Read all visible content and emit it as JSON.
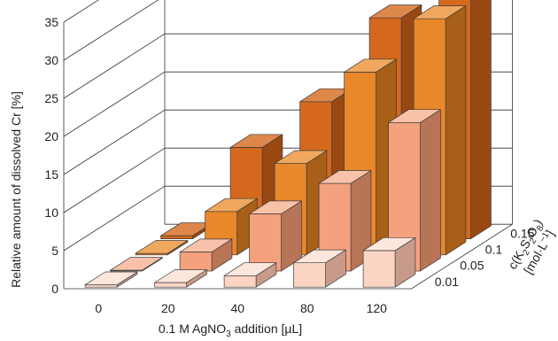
{
  "chart_data": {
    "type": "bar",
    "style": "3d-bar",
    "x_categories": [
      "0",
      "20",
      "40",
      "80",
      "120"
    ],
    "depth_categories": [
      "0.01",
      "0.05",
      "0.1",
      "0.15"
    ],
    "y_ticks": [
      "0",
      "5",
      "10",
      "15",
      "20",
      "25",
      "30",
      "35"
    ],
    "ylim": [
      0,
      35
    ],
    "grid": true,
    "ylabel": "Relative amount of dissolved Cr [%]",
    "xlabel": {
      "pre": "0.1 M AgNO",
      "sub": "3",
      "post": " addition [µL]"
    },
    "depth_label": {
      "line1": {
        "a": "c(K",
        "sub1": "2",
        "b": "S",
        "sub2": "2",
        "c": "O",
        "sub3": "8",
        "d": ")"
      },
      "line2": {
        "a": "[mol·L",
        "sup": "−1",
        "b": "]"
      }
    },
    "series": [
      {
        "name": "0.01",
        "values": [
          0.3,
          0.6,
          1.5,
          3.2,
          4.8
        ],
        "colors": {
          "front": "#fbd4c3",
          "top": "#fde6db",
          "side": "#c79a8a"
        }
      },
      {
        "name": "0.05",
        "values": [
          0.1,
          2.5,
          7.5,
          11.5,
          19.5
        ],
        "colors": {
          "front": "#f4a17e",
          "top": "#f8c2a9",
          "side": "#b87457"
        }
      },
      {
        "name": "0.1",
        "values": [
          0.2,
          5.7,
          12.0,
          24.0,
          31.0
        ],
        "colors": {
          "front": "#e8882a",
          "top": "#f0a85f",
          "side": "#a85f18"
        }
      },
      {
        "name": "0.15",
        "values": [
          0.4,
          12.0,
          18.0,
          29.0,
          33.5
        ],
        "colors": {
          "front": "#d4691e",
          "top": "#de874a",
          "side": "#9a4812"
        }
      }
    ]
  }
}
